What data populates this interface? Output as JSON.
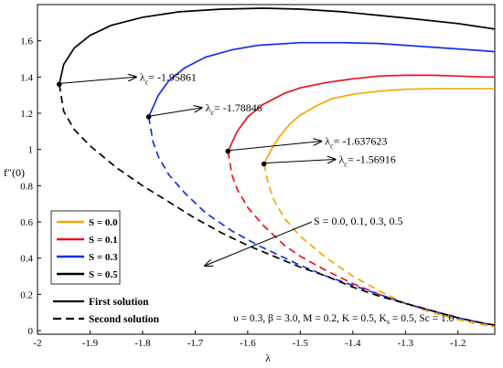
{
  "chart_data": {
    "type": "line",
    "xlabel": "λ",
    "ylabel": "f″(0)",
    "xlim": [
      -2.0,
      -1.13
    ],
    "ylim": [
      -0.02,
      1.8
    ],
    "x_ticks": [
      -2,
      -1.9,
      -1.8,
      -1.7,
      -1.6,
      -1.5,
      -1.4,
      -1.3,
      -1.2
    ],
    "x_tick_labels": [
      "-2",
      "-1.9",
      "-1.8",
      "-1.7",
      "-1.6",
      "-1.5",
      "-1.4",
      "-1.3",
      "-1.2"
    ],
    "y_ticks": [
      0,
      0.2,
      0.4,
      0.6,
      0.8,
      1,
      1.2,
      1.4,
      1.6
    ],
    "y_tick_labels": [
      "0",
      "0.2",
      "0.4",
      "0.6",
      "0.8",
      "1",
      "1.2",
      "1.4",
      "1.6"
    ],
    "series": [
      {
        "name": "S = 0.0",
        "color": "#F5A800",
        "critical": {
          "x": -1.56916,
          "y": 0.92
        },
        "upper": {
          "x": [
            -1.56916,
            -1.555,
            -1.54,
            -1.52,
            -1.5,
            -1.47,
            -1.44,
            -1.4,
            -1.35,
            -1.3,
            -1.25,
            -1.2,
            -1.15,
            -1.13
          ],
          "y": [
            0.92,
            1.0,
            1.07,
            1.14,
            1.19,
            1.24,
            1.28,
            1.305,
            1.322,
            1.332,
            1.335,
            1.335,
            1.335,
            1.335
          ]
        },
        "lower": {
          "x": [
            -1.56916,
            -1.56,
            -1.55,
            -1.53,
            -1.5,
            -1.45,
            -1.4,
            -1.35,
            -1.3,
            -1.25,
            -1.2,
            -1.15,
            -1.13
          ],
          "y": [
            0.92,
            0.8,
            0.72,
            0.62,
            0.52,
            0.4,
            0.3,
            0.22,
            0.15,
            0.1,
            0.06,
            0.03,
            0.02
          ]
        }
      },
      {
        "name": "S = 0.1",
        "color": "#E8141C",
        "critical": {
          "x": -1.637623,
          "y": 0.99
        },
        "upper": {
          "x": [
            -1.637623,
            -1.62,
            -1.6,
            -1.57,
            -1.53,
            -1.5,
            -1.45,
            -1.4,
            -1.35,
            -1.3,
            -1.25,
            -1.2,
            -1.15,
            -1.13
          ],
          "y": [
            0.99,
            1.1,
            1.18,
            1.25,
            1.31,
            1.34,
            1.37,
            1.39,
            1.405,
            1.41,
            1.41,
            1.405,
            1.4,
            1.4
          ]
        },
        "lower": {
          "x": [
            -1.637623,
            -1.63,
            -1.62,
            -1.6,
            -1.57,
            -1.53,
            -1.5,
            -1.45,
            -1.4,
            -1.35,
            -1.3,
            -1.25,
            -1.2,
            -1.15,
            -1.13
          ],
          "y": [
            0.99,
            0.86,
            0.78,
            0.68,
            0.58,
            0.47,
            0.41,
            0.33,
            0.26,
            0.2,
            0.15,
            0.11,
            0.07,
            0.04,
            0.03
          ]
        }
      },
      {
        "name": "S = 0.3",
        "color": "#1530E6",
        "critical": {
          "x": -1.78846,
          "y": 1.18
        },
        "upper": {
          "x": [
            -1.78846,
            -1.77,
            -1.75,
            -1.72,
            -1.68,
            -1.63,
            -1.58,
            -1.5,
            -1.42,
            -1.35,
            -1.3,
            -1.25,
            -1.2,
            -1.15,
            -1.13
          ],
          "y": [
            1.18,
            1.3,
            1.38,
            1.45,
            1.51,
            1.55,
            1.575,
            1.59,
            1.59,
            1.585,
            1.575,
            1.565,
            1.555,
            1.545,
            1.54
          ]
        },
        "lower": {
          "x": [
            -1.78846,
            -1.78,
            -1.77,
            -1.75,
            -1.72,
            -1.68,
            -1.63,
            -1.58,
            -1.5,
            -1.45,
            -1.4,
            -1.35,
            -1.3,
            -1.25,
            -1.2,
            -1.15,
            -1.13
          ],
          "y": [
            1.18,
            1.04,
            0.96,
            0.86,
            0.76,
            0.65,
            0.55,
            0.47,
            0.36,
            0.3,
            0.25,
            0.2,
            0.15,
            0.11,
            0.07,
            0.04,
            0.03
          ]
        }
      },
      {
        "name": "S = 0.5",
        "color": "#000000",
        "critical": {
          "x": -1.95861,
          "y": 1.36
        },
        "upper": {
          "x": [
            -1.95861,
            -1.95,
            -1.93,
            -1.9,
            -1.86,
            -1.8,
            -1.73,
            -1.65,
            -1.57,
            -1.5,
            -1.42,
            -1.35,
            -1.28,
            -1.2,
            -1.13
          ],
          "y": [
            1.36,
            1.47,
            1.56,
            1.63,
            1.685,
            1.73,
            1.76,
            1.775,
            1.78,
            1.775,
            1.76,
            1.74,
            1.72,
            1.695,
            1.665
          ]
        },
        "lower": {
          "x": [
            -1.95861,
            -1.95,
            -1.93,
            -1.9,
            -1.85,
            -1.8,
            -1.75,
            -1.7,
            -1.65,
            -1.6,
            -1.55,
            -1.5,
            -1.45,
            -1.4,
            -1.35,
            -1.3,
            -1.25,
            -1.2,
            -1.15,
            -1.13
          ],
          "y": [
            1.36,
            1.21,
            1.11,
            1.02,
            0.9,
            0.8,
            0.71,
            0.62,
            0.54,
            0.47,
            0.41,
            0.35,
            0.3,
            0.24,
            0.19,
            0.15,
            0.11,
            0.07,
            0.04,
            0.03
          ]
        }
      }
    ],
    "critical_labels": [
      {
        "series": 3,
        "text": "= -1.95861"
      },
      {
        "series": 2,
        "text": "= -1.78846"
      },
      {
        "series": 1,
        "text": "= -1.637623"
      },
      {
        "series": 0,
        "text": "= -1.56916"
      }
    ],
    "legend": {
      "placement": "bottom-left",
      "entries": [
        "S = 0.0",
        "S = 0.1",
        "S = 0.3",
        "S = 0.5"
      ],
      "first_solution": "First solution",
      "second_solution": "Second solution"
    },
    "annotation_s": "S = 0.0, 0.1, 0.3, 0.5",
    "params_text": "υ = 0.3, β = 3.0, M = 0.2, K = 0.5, K",
    "params_sub": "s",
    "params_tail": " = 0.5, Sc = 1.0",
    "lambda_symbol": "λ",
    "lambda_sub": "c"
  }
}
